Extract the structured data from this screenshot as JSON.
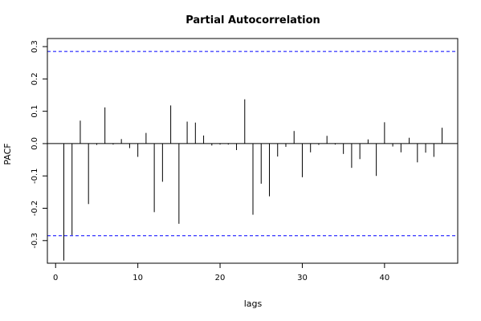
{
  "chart_data": {
    "type": "bar",
    "title": "Partial Autocorrelation",
    "xlabel": "lags",
    "ylabel": "PACF",
    "xlim": [
      -1.0,
      48.9
    ],
    "ylim": [
      -0.37,
      0.325
    ],
    "x_ticks": [
      0,
      10,
      20,
      30,
      40
    ],
    "y_ticks": [
      -0.3,
      -0.2,
      -0.1,
      0.0,
      0.1,
      0.2,
      0.3
    ],
    "y_tick_labels": [
      "-0.3",
      "-0.2",
      "-0.1",
      "0.0",
      "0.1",
      "0.2",
      "0.3"
    ],
    "confidence_band": 0.285,
    "grid": false,
    "colors": {
      "bars": "#000000",
      "zero_line": "#000000",
      "band": "#0000ff"
    },
    "series": [
      {
        "lags": [
          1,
          2,
          3,
          4,
          5,
          6,
          7,
          8,
          9,
          10,
          11,
          12,
          13,
          14,
          15,
          16,
          17,
          18,
          19,
          20,
          21,
          22,
          23,
          24,
          25,
          26,
          27,
          28,
          29,
          30,
          31,
          32,
          33,
          34,
          35,
          36,
          37,
          38,
          39,
          40,
          41,
          42,
          43,
          44,
          45,
          46,
          47
        ],
        "values": [
          -0.362,
          -0.283,
          0.071,
          -0.187,
          -0.004,
          0.112,
          -0.003,
          0.014,
          -0.014,
          -0.041,
          0.033,
          -0.212,
          -0.118,
          0.118,
          -0.248,
          0.068,
          0.065,
          0.025,
          -0.006,
          -0.003,
          -0.003,
          -0.02,
          0.137,
          -0.22,
          -0.124,
          -0.163,
          -0.04,
          -0.01,
          0.039,
          -0.104,
          -0.027,
          -0.004,
          0.024,
          -0.003,
          -0.032,
          -0.075,
          -0.048,
          0.013,
          -0.1,
          0.066,
          -0.009,
          -0.027,
          0.018,
          -0.058,
          -0.028,
          -0.041,
          0.049
        ]
      }
    ]
  }
}
